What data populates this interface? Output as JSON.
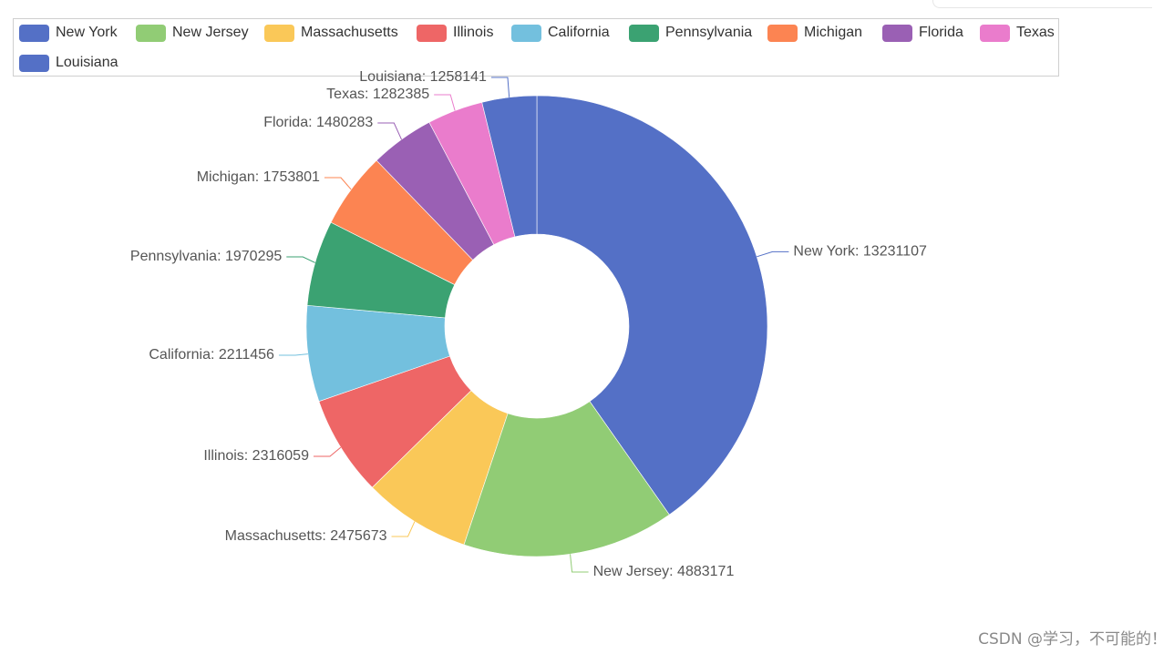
{
  "chart_data": {
    "type": "pie",
    "variant": "donut",
    "title": "",
    "legend_position": "top-left",
    "categories": [
      "New York",
      "New Jersey",
      "Massachusetts",
      "Illinois",
      "California",
      "Pennsylvania",
      "Michigan",
      "Florida",
      "Texas",
      "Louisiana"
    ],
    "values": [
      13231107,
      4883171,
      2475673,
      2316059,
      2211456,
      1970295,
      1753801,
      1480283,
      1282385,
      1258141
    ],
    "colors": [
      "#5470c6",
      "#91cc75",
      "#fac858",
      "#ee6666",
      "#73c0de",
      "#3ba272",
      "#fc8452",
      "#9a60b4",
      "#ea7ccc",
      "#5470c6"
    ],
    "label_format": "{name}: {value}"
  },
  "watermark": "CSDN @学习，不可能的！"
}
